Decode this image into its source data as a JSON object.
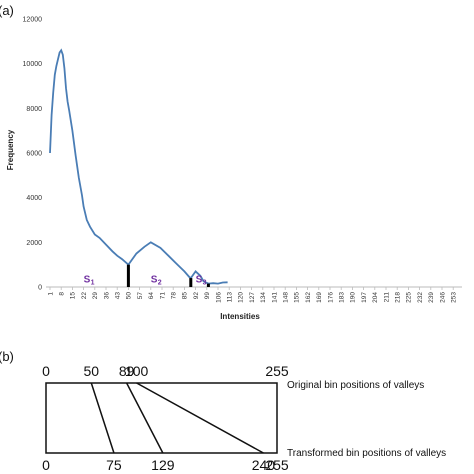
{
  "chart_data": [
    {
      "panel_label": "(a)",
      "type": "line",
      "xlabel": "Intensities",
      "ylabel": "Frequency",
      "ylim": [
        0,
        12000
      ],
      "y_ticks": [
        0,
        2000,
        4000,
        6000,
        8000,
        10000,
        12000
      ],
      "x_ticks": [
        "1",
        "8",
        "15",
        "22",
        "29",
        "36",
        "43",
        "50",
        "57",
        "64",
        "71",
        "78",
        "85",
        "92",
        "99",
        "106",
        "113",
        "120",
        "127",
        "134",
        "141",
        "148",
        "155",
        "162",
        "169",
        "176",
        "183",
        "190",
        "197",
        "204",
        "211",
        "218",
        "225",
        "232",
        "239",
        "246",
        "253"
      ],
      "xlim": [
        1,
        256
      ],
      "grid": false,
      "color": "#4a7db5",
      "series": [
        {
          "x": [
            1,
            2,
            3,
            4,
            5,
            6,
            7,
            8,
            9,
            10,
            11,
            12,
            13,
            15,
            17,
            19,
            21,
            22,
            24,
            26,
            29,
            32,
            36,
            40,
            43,
            46,
            50,
            55,
            60,
            64,
            70,
            75,
            80,
            85,
            88,
            89,
            92,
            95,
            97,
            100,
            103,
            106,
            109,
            112
          ],
          "y": [
            6000,
            7700,
            8700,
            9500,
            9900,
            10200,
            10500,
            10600,
            10400,
            9800,
            8900,
            8300,
            7900,
            7000,
            5900,
            4900,
            4100,
            3600,
            3000,
            2700,
            2350,
            2200,
            1900,
            1600,
            1400,
            1250,
            1000,
            1500,
            1800,
            2000,
            1750,
            1400,
            1050,
            700,
            450,
            400,
            700,
            500,
            250,
            150,
            170,
            150,
            200,
            210
          ]
        }
      ],
      "valley_markers": [
        50,
        89,
        100
      ],
      "segments": [
        {
          "label": "S",
          "sub": "1",
          "x": 22,
          "y": 200
        },
        {
          "label": "S",
          "sub": "2",
          "x": 64,
          "y": 200
        },
        {
          "label": "S",
          "sub": "3",
          "x": 92,
          "y": 200
        }
      ]
    },
    {
      "panel_label": "(b)",
      "type": "diagram",
      "top_values": [
        "0",
        "50",
        "89",
        "100",
        "255"
      ],
      "bottom_values": [
        "0",
        "75",
        "129",
        "240",
        "255"
      ],
      "top_caption": "Original bin positions of valleys",
      "bottom_caption": "Transformed bin positions of valleys"
    }
  ]
}
